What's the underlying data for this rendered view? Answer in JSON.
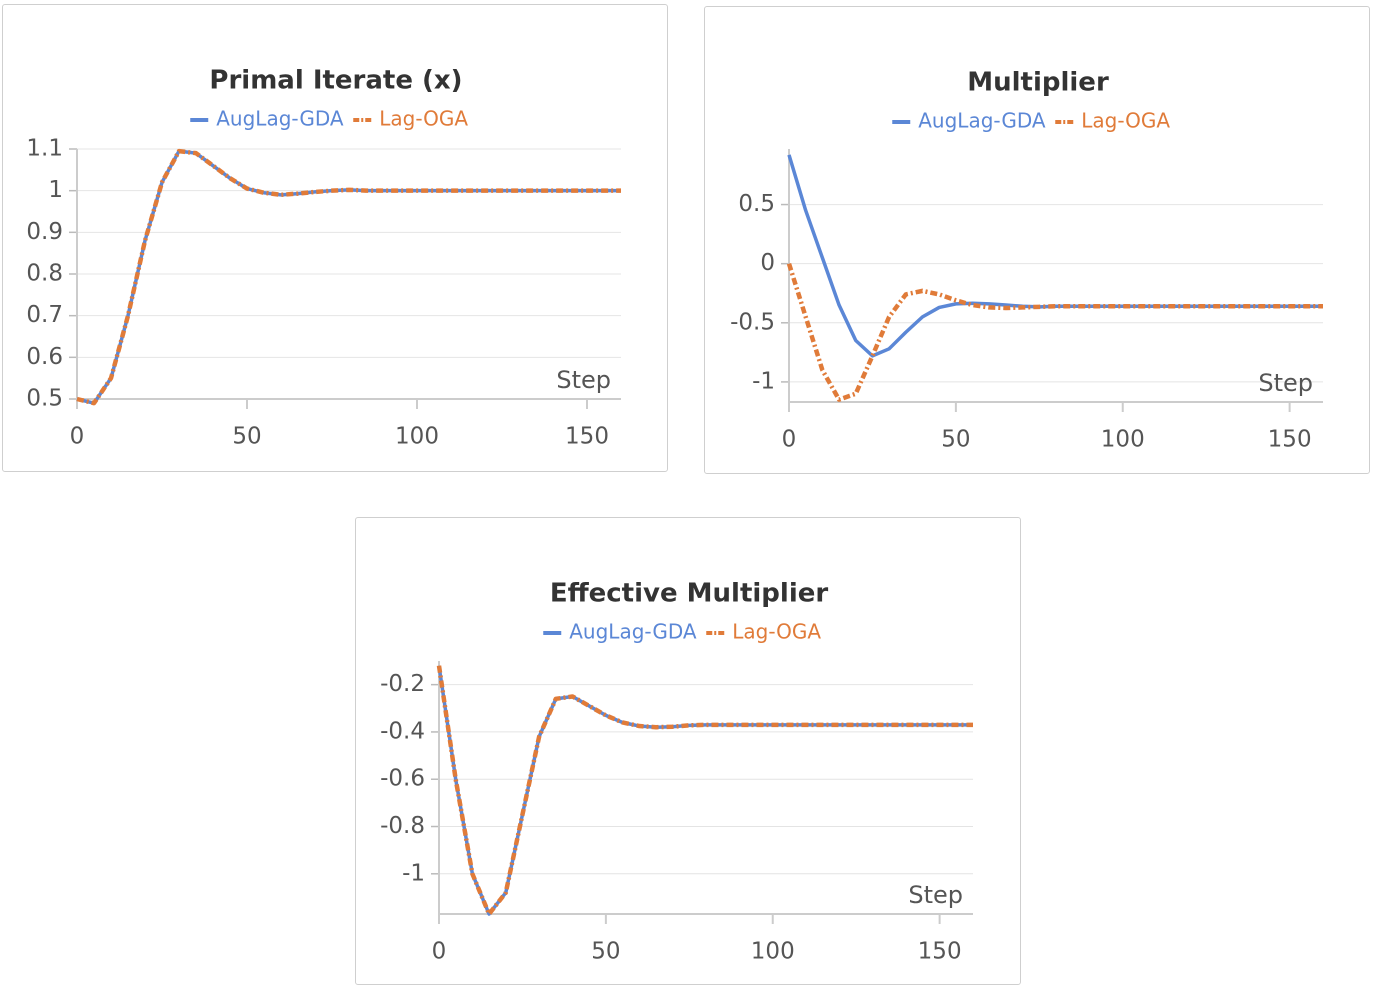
{
  "chart_data": [
    {
      "type": "line",
      "title": "Primal Iterate (x)",
      "x_label": "Step",
      "x": [
        0,
        5,
        10,
        15,
        20,
        25,
        30,
        35,
        40,
        45,
        50,
        55,
        60,
        65,
        70,
        75,
        80,
        85,
        90,
        95,
        100,
        105,
        110,
        115,
        120,
        125,
        130,
        135,
        140,
        145,
        150,
        155,
        160
      ],
      "series": [
        {
          "name": "AugLag-GDA",
          "color": "#5b87d6",
          "values": [
            0.5,
            0.49,
            0.55,
            0.7,
            0.88,
            1.02,
            1.095,
            1.09,
            1.06,
            1.03,
            1.005,
            0.995,
            0.99,
            0.993,
            0.997,
            1.0,
            1.002,
            1,
            1,
            1,
            1,
            1,
            1,
            1,
            1,
            1,
            1,
            1,
            1,
            1,
            1,
            1,
            1
          ]
        },
        {
          "name": "Lag-OGA",
          "color": "#e07b39",
          "values": [
            0.5,
            0.49,
            0.55,
            0.7,
            0.88,
            1.02,
            1.095,
            1.09,
            1.06,
            1.03,
            1.005,
            0.995,
            0.99,
            0.993,
            0.997,
            1.0,
            1.002,
            1,
            1,
            1,
            1,
            1,
            1,
            1,
            1,
            1,
            1,
            1,
            1,
            1,
            1,
            1,
            1
          ]
        }
      ],
      "xlim": [
        0,
        160
      ],
      "xticks": [
        0,
        50,
        100,
        150
      ],
      "ylim": [
        0.5,
        1.1
      ],
      "yticks": [
        0.5,
        0.6,
        0.7,
        0.8,
        0.9,
        1,
        1.1
      ],
      "grid": true,
      "legend": "top"
    },
    {
      "type": "line",
      "title": "Multiplier",
      "x_label": "Step",
      "x": [
        0,
        5,
        10,
        15,
        20,
        25,
        30,
        35,
        40,
        45,
        50,
        55,
        60,
        65,
        70,
        75,
        80,
        85,
        90,
        95,
        100,
        105,
        110,
        115,
        120,
        125,
        130,
        135,
        140,
        145,
        150,
        155,
        160
      ],
      "series": [
        {
          "name": "AugLag-GDA",
          "color": "#5b87d6",
          "values": [
            0.92,
            0.45,
            0.05,
            -0.35,
            -0.65,
            -0.78,
            -0.72,
            -0.58,
            -0.45,
            -0.37,
            -0.34,
            -0.335,
            -0.34,
            -0.35,
            -0.36,
            -0.365,
            -0.36,
            -0.36,
            -0.36,
            -0.36,
            -0.36,
            -0.36,
            -0.36,
            -0.36,
            -0.36,
            -0.36,
            -0.36,
            -0.36,
            -0.36,
            -0.36,
            -0.36,
            -0.36,
            -0.36
          ]
        },
        {
          "name": "Lag-OGA",
          "color": "#e07b39",
          "values": [
            0,
            -0.45,
            -0.9,
            -1.15,
            -1.1,
            -0.78,
            -0.45,
            -0.26,
            -0.23,
            -0.26,
            -0.31,
            -0.35,
            -0.37,
            -0.375,
            -0.37,
            -0.365,
            -0.36,
            -0.36,
            -0.36,
            -0.36,
            -0.36,
            -0.36,
            -0.36,
            -0.36,
            -0.36,
            -0.36,
            -0.36,
            -0.36,
            -0.36,
            -0.36,
            -0.36,
            -0.36,
            -0.36
          ]
        }
      ],
      "xlim": [
        0,
        160
      ],
      "xticks": [
        0,
        50,
        100,
        150
      ],
      "ylim": [
        -1.17,
        0.97
      ],
      "yticks": [
        -1,
        -0.5,
        0,
        0.5
      ],
      "grid": true,
      "legend": "top"
    },
    {
      "type": "line",
      "title": "Effective Multiplier",
      "x_label": "Step",
      "x": [
        0,
        5,
        10,
        15,
        20,
        25,
        30,
        35,
        40,
        45,
        50,
        55,
        60,
        65,
        70,
        75,
        80,
        85,
        90,
        95,
        100,
        105,
        110,
        115,
        120,
        125,
        130,
        135,
        140,
        145,
        150,
        155,
        160
      ],
      "series": [
        {
          "name": "AugLag-GDA",
          "color": "#5b87d6",
          "values": [
            -0.12,
            -0.6,
            -1.0,
            -1.17,
            -1.08,
            -0.75,
            -0.42,
            -0.26,
            -0.25,
            -0.29,
            -0.33,
            -0.36,
            -0.375,
            -0.38,
            -0.378,
            -0.372,
            -0.37,
            -0.37,
            -0.37,
            -0.37,
            -0.37,
            -0.37,
            -0.37,
            -0.37,
            -0.37,
            -0.37,
            -0.37,
            -0.37,
            -0.37,
            -0.37,
            -0.37,
            -0.37,
            -0.37
          ]
        },
        {
          "name": "Lag-OGA",
          "color": "#e07b39",
          "values": [
            -0.12,
            -0.6,
            -1.0,
            -1.17,
            -1.08,
            -0.75,
            -0.42,
            -0.26,
            -0.25,
            -0.29,
            -0.33,
            -0.36,
            -0.375,
            -0.38,
            -0.378,
            -0.372,
            -0.37,
            -0.37,
            -0.37,
            -0.37,
            -0.37,
            -0.37,
            -0.37,
            -0.37,
            -0.37,
            -0.37,
            -0.37,
            -0.37,
            -0.37,
            -0.37,
            -0.37,
            -0.37,
            -0.37
          ]
        }
      ],
      "xlim": [
        0,
        160
      ],
      "xticks": [
        0,
        50,
        100,
        150
      ],
      "ylim": [
        -1.17,
        -0.1
      ],
      "yticks": [
        -1,
        -0.8,
        -0.6,
        -0.4,
        -0.2
      ],
      "grid": true,
      "legend": "top"
    }
  ]
}
